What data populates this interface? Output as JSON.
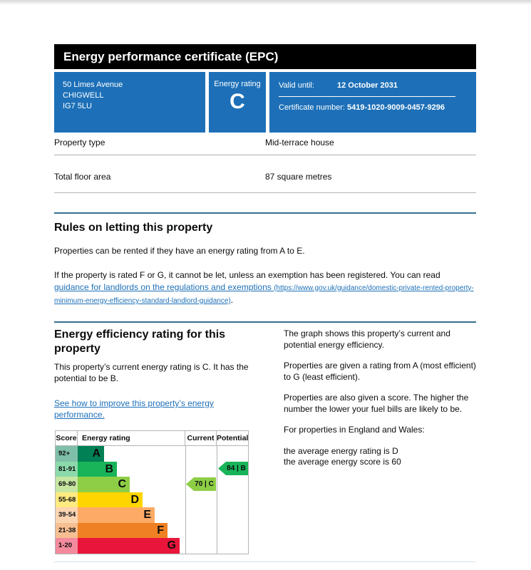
{
  "header": {
    "title": "Energy performance certificate (EPC)"
  },
  "banner": {
    "background_color": "#1d70b8",
    "address_lines": [
      "50 Limes Avenue",
      "CHIGWELL",
      "IG7 5LU"
    ],
    "rating_label": "Energy rating",
    "rating_value": "C",
    "valid_until_label": "Valid until:",
    "valid_until_value": "12 October 2031",
    "certificate_number_label": "Certificate number:",
    "certificate_number_value": "5419-1020-9009-0457-9296"
  },
  "property": {
    "rows": [
      {
        "label": "Property type",
        "value": "Mid-terrace house"
      },
      {
        "label": "Total floor area",
        "value": "87 square metres"
      }
    ]
  },
  "rules_section": {
    "heading": "Rules on letting this property",
    "paragraph1": "Properties can be rented if they have an energy rating from A to E.",
    "paragraph2_start": "If the property is rated F or G, it cannot be let, unless an exemption has been registered. You can read ",
    "link_text": "guidance for landlords on the regulations and exemptions ",
    "link_url_text": "(https://www.gov.uk/guidance/domestic-private-rented-property-minimum-energy-efficiency-standard-landlord-guidance)",
    "paragraph2_end": "."
  },
  "rating_section": {
    "heading": "Energy efficiency rating for this property",
    "paragraph": "This property’s current energy rating is C. It has the potential to be B.",
    "improve_link_text": "See how to improve this property’s energy performance.",
    "right_paragraphs": [
      "The graph shows this property’s current and potential energy efficiency.",
      "Properties are given a rating from A (most efficient) to G (least efficient).",
      "Properties are also given a score. The higher the number the lower your fuel bills are likely to be.",
      "For properties in England and Wales:",
      "the average energy rating is D\nthe average energy score is 60"
    ]
  },
  "chart_data": {
    "type": "bar",
    "title": "Energy efficiency rating chart",
    "columns": [
      "Score",
      "Energy rating",
      "Current",
      "Potential"
    ],
    "bands": [
      {
        "score_range": "92+",
        "letter": "A",
        "color": "#008054",
        "tint": "#7fbfa9"
      },
      {
        "score_range": "81-91",
        "letter": "B",
        "color": "#19b459",
        "tint": "#8cd9ac"
      },
      {
        "score_range": "69-80",
        "letter": "C",
        "color": "#8dce46",
        "tint": "#c6e6a2"
      },
      {
        "score_range": "55-68",
        "letter": "D",
        "color": "#ffd500",
        "tint": "#ffea80"
      },
      {
        "score_range": "39-54",
        "letter": "E",
        "color": "#fcaa65",
        "tint": "#fdd4b2"
      },
      {
        "score_range": "21-38",
        "letter": "F",
        "color": "#ef8023",
        "tint": "#f7bf91"
      },
      {
        "score_range": "1-20",
        "letter": "G",
        "color": "#e9153b",
        "tint": "#f48a9d"
      }
    ],
    "current": {
      "score": 70,
      "letter": "C",
      "display": "70 |  C",
      "band_color": "#8dce46"
    },
    "potential": {
      "score": 84,
      "letter": "B",
      "display": "84 |  B",
      "band_color": "#19b459"
    }
  }
}
